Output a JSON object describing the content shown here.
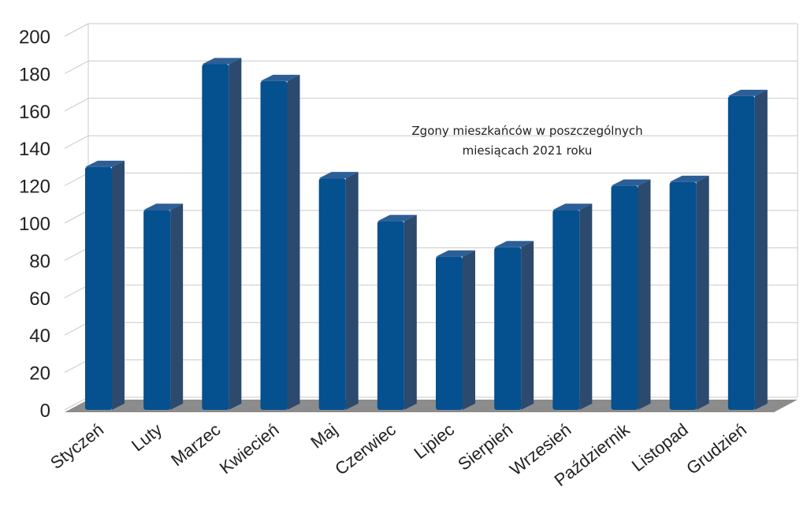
{
  "chart_data": {
    "type": "bar",
    "title": [
      "Zgony mieszkańców w poszczególnych",
      "miesiącach 2021 roku"
    ],
    "categories": [
      "Styczeń",
      "Luty",
      "Marzec",
      "Kwiecień",
      "Maj",
      "Czerwiec",
      "Lipiec",
      "Sierpień",
      "Wrzesień",
      "Październik",
      "Listopad",
      "Grudzień"
    ],
    "values": [
      130,
      107,
      185,
      176,
      124,
      101,
      82,
      87,
      107,
      120,
      122,
      168
    ],
    "ylim": [
      0,
      200
    ],
    "yticks": [
      0,
      20,
      40,
      60,
      80,
      100,
      120,
      140,
      160,
      180,
      200
    ],
    "xlabel": "",
    "ylabel": "",
    "grid": true,
    "bar_color": "#05508F",
    "bar_side_color": "#2C4A6E",
    "floor_color": "#8C8C8C"
  }
}
